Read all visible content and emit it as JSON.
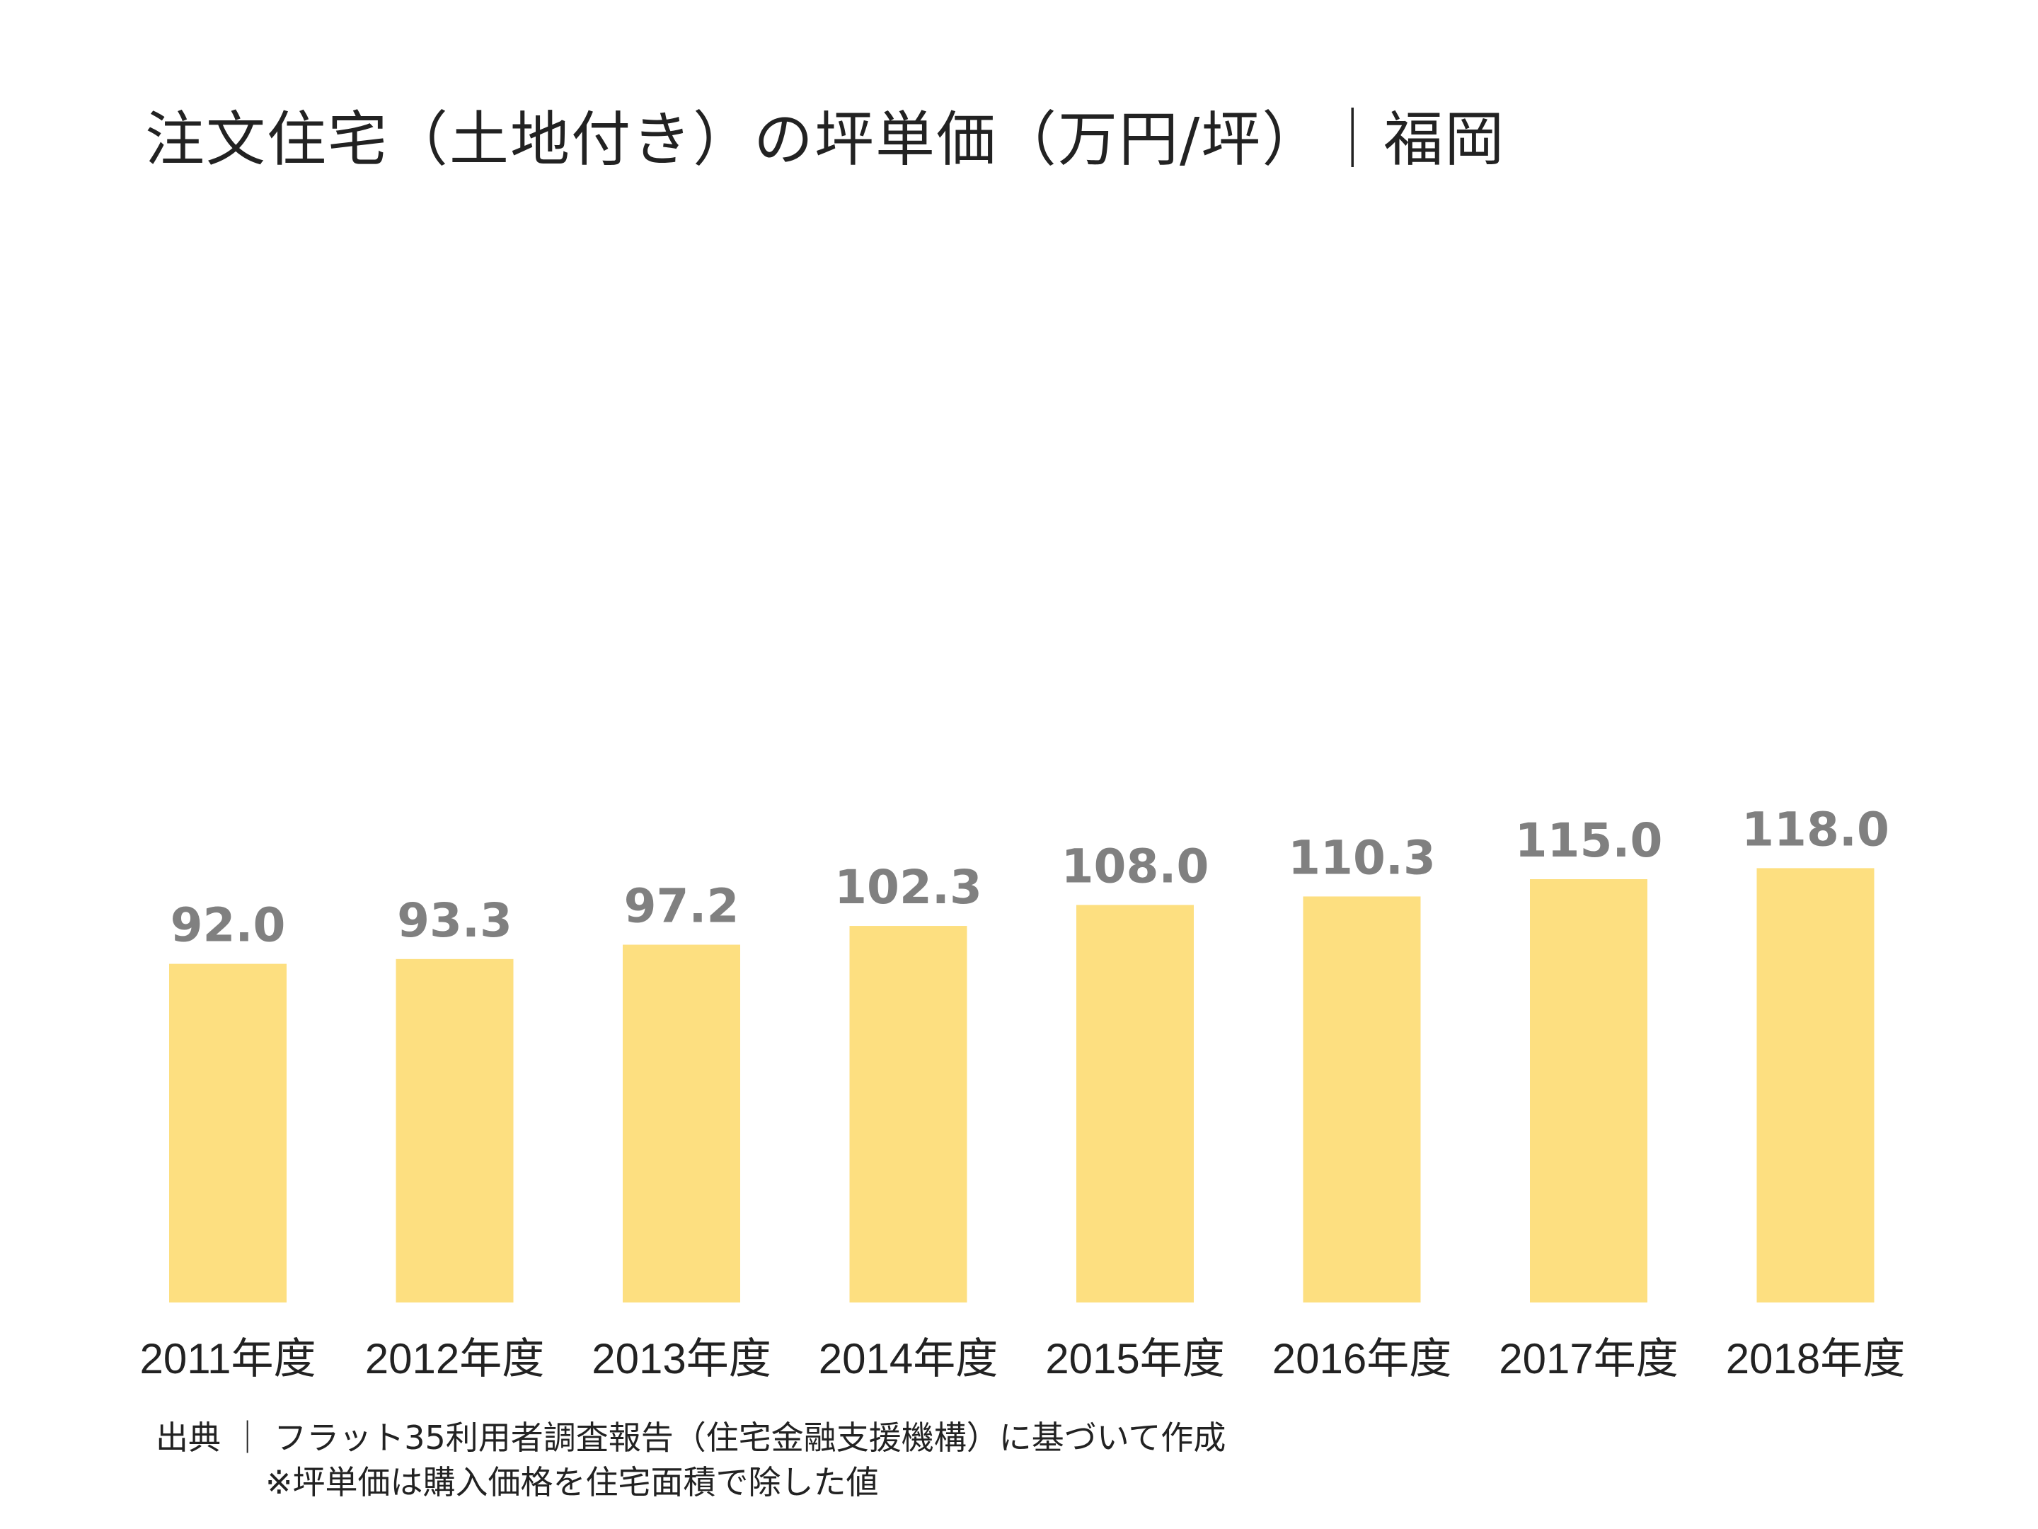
{
  "chart_data": {
    "type": "bar",
    "title": "注文住宅（土地付き）の坪単価（万円/坪）｜福岡",
    "categories": [
      "2011年度",
      "2012年度",
      "2013年度",
      "2014年度",
      "2015年度",
      "2016年度",
      "2017年度",
      "2018年度"
    ],
    "values": [
      92.0,
      93.3,
      97.2,
      102.3,
      108.0,
      110.3,
      115.0,
      118.0
    ],
    "value_labels": [
      "92.0",
      "93.3",
      "97.2",
      "102.3",
      "108.0",
      "110.3",
      "115.0",
      "118.0"
    ],
    "xlabel": "",
    "ylabel": "",
    "ylim": [
      0,
      400
    ],
    "grid": false,
    "legend": "none",
    "bar_color": "#FDDF80",
    "label_color": "#808080"
  },
  "notes": {
    "source": "出典 ｜ フラット35利用者調査報告（住宅金融支援機構）に基づいて作成",
    "remark": "※坪単価は購入価格を住宅面積で除した値"
  }
}
